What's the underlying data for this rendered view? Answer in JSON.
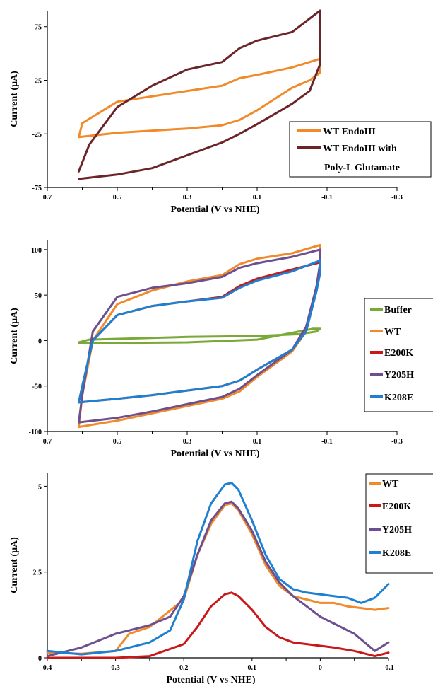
{
  "chart_data": [
    {
      "type": "line",
      "xlabel": "Potential (V vs NHE)",
      "ylabel": "Current (μA)",
      "xlim": [
        0.7,
        -0.3
      ],
      "ylim": [
        -75,
        90
      ],
      "x_ticks": [
        "0.7",
        "0.5",
        "0.3",
        "0.1",
        "-0.1",
        "-0.3"
      ],
      "y_ticks": [
        "75",
        "25",
        "-25",
        "-75"
      ],
      "legend": {
        "placement": "bottom-right",
        "labels": [
          "WT EndoIII",
          "WT EndoIII with",
          "Poly-L Glutamate"
        ]
      },
      "series": [
        {
          "name": "WT EndoIII",
          "color": "#f08a2a",
          "x": [
            0.61,
            0.6,
            0.5,
            0.3,
            0.2,
            0.15,
            0.1,
            0.0,
            -0.08,
            -0.08,
            -0.05,
            0.0,
            0.1,
            0.15,
            0.2,
            0.3,
            0.5,
            0.61,
            0.61
          ],
          "y": [
            -28,
            -15,
            5,
            15,
            20,
            27,
            30,
            37,
            45,
            32,
            25,
            18,
            -3,
            -12,
            -17,
            -20,
            -24,
            -28,
            -28
          ]
        },
        {
          "name": "WT EndoIII with Poly-L Glutamate",
          "color": "#6b2428",
          "x": [
            0.61,
            0.58,
            0.5,
            0.4,
            0.3,
            0.2,
            0.15,
            0.1,
            0.0,
            -0.08,
            -0.08,
            -0.05,
            0.0,
            0.1,
            0.15,
            0.2,
            0.3,
            0.4,
            0.5,
            0.61
          ],
          "y": [
            -60,
            -35,
            0,
            20,
            35,
            42,
            55,
            62,
            70,
            90,
            40,
            15,
            3,
            -16,
            -25,
            -33,
            -45,
            -57,
            -63,
            -67
          ]
        }
      ]
    },
    {
      "type": "line",
      "xlabel": "Potential (V vs NHE)",
      "ylabel": "Current (μA)",
      "xlim": [
        0.7,
        -0.3
      ],
      "ylim": [
        -100,
        110
      ],
      "x_ticks": [
        "0.7",
        "0.5",
        "0.3",
        "0.1",
        "-0.1",
        "-0.3"
      ],
      "y_ticks": [
        "100",
        "50",
        "0",
        "-50",
        "-100"
      ],
      "legend": {
        "placement": "right",
        "labels": [
          "Buffer",
          "WT",
          "E200K",
          "Y205H",
          "K208E"
        ]
      },
      "series": [
        {
          "name": "Buffer",
          "color": "#7aa93a",
          "x": [
            0.61,
            0.58,
            0.3,
            0.1,
            -0.02,
            -0.07,
            -0.08,
            -0.06,
            -0.02,
            0.1,
            0.3,
            0.61
          ],
          "y": [
            -2,
            1,
            4,
            5,
            7,
            10,
            13,
            13,
            10,
            1,
            -2,
            -3
          ]
        },
        {
          "name": "WT",
          "color": "#f08a2a",
          "x": [
            0.61,
            0.6,
            0.57,
            0.5,
            0.4,
            0.3,
            0.2,
            0.15,
            0.1,
            0.0,
            -0.08,
            -0.08,
            -0.07,
            -0.04,
            0.0,
            0.1,
            0.15,
            0.2,
            0.3,
            0.4,
            0.5,
            0.61
          ],
          "y": [
            -95,
            -60,
            0,
            40,
            55,
            65,
            72,
            84,
            90,
            96,
            105,
            85,
            60,
            10,
            -12,
            -40,
            -56,
            -64,
            -72,
            -80,
            -88,
            -95
          ]
        },
        {
          "name": "E200K",
          "color": "#c81818",
          "x": [
            0.61,
            0.6,
            0.57,
            0.5,
            0.4,
            0.3,
            0.2,
            0.15,
            0.1,
            0.0,
            -0.08,
            -0.08,
            -0.07,
            -0.04,
            0.0,
            0.1,
            0.15,
            0.2,
            0.3,
            0.4,
            0.5,
            0.61
          ],
          "y": [
            -68,
            -50,
            0,
            28,
            38,
            43,
            48,
            60,
            68,
            78,
            86,
            75,
            55,
            10,
            -10,
            -32,
            -44,
            -50,
            -55,
            -60,
            -64,
            -68
          ]
        },
        {
          "name": "Y205H",
          "color": "#6d4e8e",
          "x": [
            0.61,
            0.6,
            0.57,
            0.5,
            0.4,
            0.3,
            0.2,
            0.15,
            0.1,
            0.0,
            -0.08,
            -0.08,
            -0.07,
            -0.04,
            0.0,
            0.1,
            0.15,
            0.2,
            0.3,
            0.4,
            0.5,
            0.61
          ],
          "y": [
            -90,
            -60,
            10,
            48,
            58,
            63,
            70,
            80,
            85,
            92,
            100,
            85,
            60,
            15,
            -10,
            -38,
            -53,
            -62,
            -70,
            -78,
            -85,
            -90
          ]
        },
        {
          "name": "K208E",
          "color": "#1f7fd0",
          "x": [
            0.61,
            0.6,
            0.57,
            0.5,
            0.4,
            0.3,
            0.2,
            0.15,
            0.1,
            0.0,
            -0.08,
            -0.08,
            -0.07,
            -0.04,
            0.0,
            0.1,
            0.15,
            0.2,
            0.3,
            0.4,
            0.5,
            0.61
          ],
          "y": [
            -68,
            -50,
            0,
            28,
            38,
            43,
            47,
            58,
            66,
            76,
            88,
            74,
            55,
            10,
            -10,
            -32,
            -44,
            -50,
            -55,
            -60,
            -64,
            -68
          ]
        }
      ]
    },
    {
      "type": "line",
      "xlabel": "Potential (V vs NHE)",
      "ylabel": "Current (μA)",
      "xlim": [
        0.4,
        -0.1
      ],
      "ylim": [
        0,
        5.4
      ],
      "x_ticks": [
        "0.4",
        "0.3",
        "0.2",
        "0.1",
        "0",
        "-0.1"
      ],
      "y_ticks": [
        "5",
        "2.5",
        "0"
      ],
      "legend": {
        "placement": "top-right",
        "labels": [
          "WT",
          "E200K",
          "Y205H",
          "K208E"
        ]
      },
      "series": [
        {
          "name": "WT",
          "color": "#f08a2a",
          "x": [
            0.4,
            0.35,
            0.3,
            0.28,
            0.25,
            0.2,
            0.18,
            0.16,
            0.14,
            0.13,
            0.12,
            0.1,
            0.08,
            0.06,
            0.04,
            0.02,
            0.0,
            -0.02,
            -0.04,
            -0.06,
            -0.08,
            -0.1
          ],
          "y": [
            0.15,
            0.12,
            0.2,
            0.7,
            0.9,
            1.7,
            3.0,
            3.9,
            4.45,
            4.5,
            4.3,
            3.6,
            2.7,
            2.1,
            1.8,
            1.7,
            1.6,
            1.6,
            1.5,
            1.45,
            1.4,
            1.45
          ]
        },
        {
          "name": "E200K",
          "color": "#c81818",
          "x": [
            0.4,
            0.3,
            0.25,
            0.2,
            0.18,
            0.16,
            0.14,
            0.13,
            0.12,
            0.1,
            0.08,
            0.06,
            0.04,
            0.02,
            0.0,
            -0.02,
            -0.05,
            -0.08,
            -0.1
          ],
          "y": [
            0.0,
            0.0,
            0.05,
            0.4,
            0.9,
            1.5,
            1.85,
            1.9,
            1.8,
            1.4,
            0.9,
            0.6,
            0.45,
            0.4,
            0.35,
            0.3,
            0.2,
            0.05,
            0.15
          ]
        },
        {
          "name": "Y205H",
          "color": "#6d4e8e",
          "x": [
            0.4,
            0.35,
            0.3,
            0.25,
            0.22,
            0.2,
            0.18,
            0.16,
            0.14,
            0.13,
            0.12,
            0.1,
            0.08,
            0.06,
            0.04,
            0.02,
            0.0,
            -0.02,
            -0.05,
            -0.08,
            -0.1
          ],
          "y": [
            0.05,
            0.3,
            0.7,
            0.95,
            1.2,
            1.8,
            3.0,
            4.0,
            4.5,
            4.55,
            4.35,
            3.7,
            2.8,
            2.2,
            1.8,
            1.5,
            1.2,
            1.0,
            0.7,
            0.2,
            0.45
          ]
        },
        {
          "name": "K208E",
          "color": "#1f7fd0",
          "x": [
            0.4,
            0.35,
            0.3,
            0.25,
            0.22,
            0.2,
            0.18,
            0.16,
            0.14,
            0.13,
            0.12,
            0.1,
            0.08,
            0.06,
            0.04,
            0.02,
            0.0,
            -0.02,
            -0.04,
            -0.06,
            -0.08,
            -0.1
          ],
          "y": [
            0.2,
            0.1,
            0.2,
            0.45,
            0.8,
            1.7,
            3.4,
            4.5,
            5.05,
            5.1,
            4.9,
            4.0,
            3.0,
            2.3,
            2.0,
            1.9,
            1.85,
            1.8,
            1.75,
            1.6,
            1.75,
            2.15
          ]
        }
      ]
    }
  ]
}
